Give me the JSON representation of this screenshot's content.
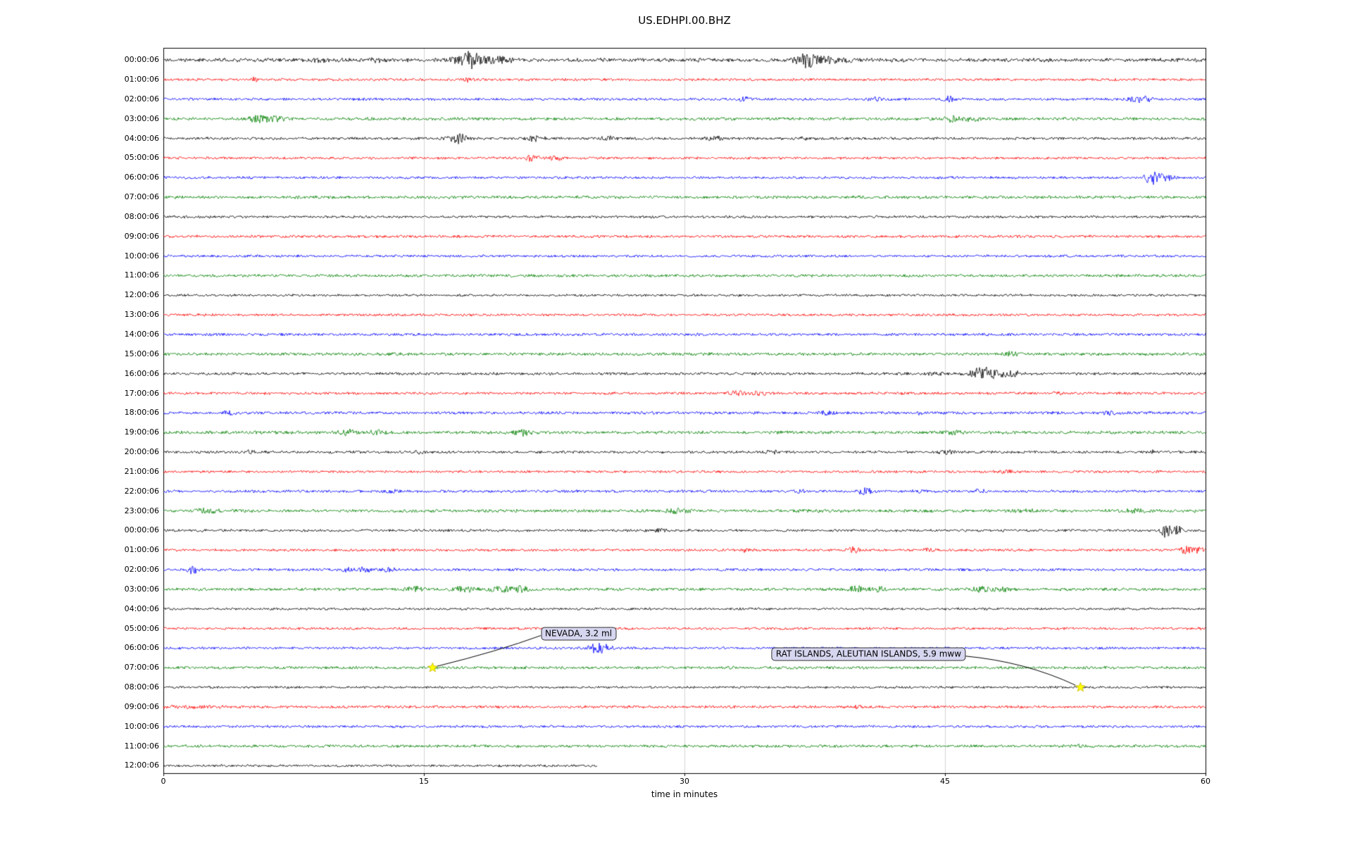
{
  "chart_data": {
    "type": "line",
    "variant": "seismogram-helicorder",
    "title": "US.EDHPI.00.BHZ",
    "xlabel": "time in minutes",
    "xlim": [
      0,
      60
    ],
    "x_ticks": [
      "0",
      "15",
      "30",
      "45",
      "60"
    ],
    "grid": {
      "vertical_lines_minutes": [
        15,
        30,
        45
      ],
      "color": "#c8c8c8"
    },
    "trace_colors_cycle": [
      "#000000",
      "#ff0000",
      "#0000ff",
      "#008000"
    ],
    "marker_color": "#ffff00",
    "rows": [
      {
        "label": "00:00:06",
        "color": "#000000",
        "amp": 2.4
      },
      {
        "label": "01:00:06",
        "color": "#ff0000",
        "amp": 1.6
      },
      {
        "label": "02:00:06",
        "color": "#0000ff",
        "amp": 1.7
      },
      {
        "label": "03:00:06",
        "color": "#008000",
        "amp": 1.9
      },
      {
        "label": "04:00:06",
        "color": "#000000",
        "amp": 1.7
      },
      {
        "label": "05:00:06",
        "color": "#ff0000",
        "amp": 1.6
      },
      {
        "label": "06:00:06",
        "color": "#0000ff",
        "amp": 1.6
      },
      {
        "label": "07:00:06",
        "color": "#008000",
        "amp": 1.9
      },
      {
        "label": "08:00:06",
        "color": "#000000",
        "amp": 1.6
      },
      {
        "label": "09:00:06",
        "color": "#ff0000",
        "amp": 1.7
      },
      {
        "label": "10:00:06",
        "color": "#0000ff",
        "amp": 1.6
      },
      {
        "label": "11:00:06",
        "color": "#008000",
        "amp": 1.8
      },
      {
        "label": "12:00:06",
        "color": "#000000",
        "amp": 1.5
      },
      {
        "label": "13:00:06",
        "color": "#ff0000",
        "amp": 1.6
      },
      {
        "label": "14:00:06",
        "color": "#0000ff",
        "amp": 1.7
      },
      {
        "label": "15:00:06",
        "color": "#008000",
        "amp": 1.9
      },
      {
        "label": "16:00:06",
        "color": "#000000",
        "amp": 1.7
      },
      {
        "label": "17:00:06",
        "color": "#ff0000",
        "amp": 1.7
      },
      {
        "label": "18:00:06",
        "color": "#0000ff",
        "amp": 1.8
      },
      {
        "label": "19:00:06",
        "color": "#008000",
        "amp": 2.0
      },
      {
        "label": "20:00:06",
        "color": "#000000",
        "amp": 1.7
      },
      {
        "label": "21:00:06",
        "color": "#ff0000",
        "amp": 1.6
      },
      {
        "label": "22:00:06",
        "color": "#0000ff",
        "amp": 1.7
      },
      {
        "label": "23:00:06",
        "color": "#008000",
        "amp": 2.0
      },
      {
        "label": "00:00:06",
        "color": "#000000",
        "amp": 1.6
      },
      {
        "label": "01:00:06",
        "color": "#ff0000",
        "amp": 1.6
      },
      {
        "label": "02:00:06",
        "color": "#0000ff",
        "amp": 1.7
      },
      {
        "label": "03:00:06",
        "color": "#008000",
        "amp": 1.9
      },
      {
        "label": "04:00:06",
        "color": "#000000",
        "amp": 1.5
      },
      {
        "label": "05:00:06",
        "color": "#ff0000",
        "amp": 1.6
      },
      {
        "label": "06:00:06",
        "color": "#0000ff",
        "amp": 1.6
      },
      {
        "label": "07:00:06",
        "color": "#008000",
        "amp": 1.8
      },
      {
        "label": "08:00:06",
        "color": "#000000",
        "amp": 1.5
      },
      {
        "label": "09:00:06",
        "color": "#ff0000",
        "amp": 1.7
      },
      {
        "label": "10:00:06",
        "color": "#0000ff",
        "amp": 1.6
      },
      {
        "label": "11:00:06",
        "color": "#008000",
        "amp": 1.8
      },
      {
        "label": "12:00:06",
        "color": "#000000",
        "amp": 1.5,
        "end_minute": 25
      }
    ],
    "bursts": [
      [
        0,
        17.5,
        0.5,
        9
      ],
      [
        0,
        18.7,
        1.0,
        4
      ],
      [
        0,
        9.0,
        0.3,
        2.5
      ],
      [
        0,
        12.2,
        0.3,
        2
      ],
      [
        0,
        37.0,
        0.45,
        8
      ],
      [
        0,
        38.2,
        0.9,
        3.5
      ],
      [
        1,
        5.2,
        0.15,
        3
      ],
      [
        1,
        17.5,
        0.2,
        3
      ],
      [
        2,
        33.5,
        0.3,
        2.5
      ],
      [
        2,
        41.0,
        0.3,
        2.5
      ],
      [
        2,
        45.2,
        0.25,
        4
      ],
      [
        2,
        56.3,
        0.4,
        5
      ],
      [
        3,
        5.3,
        0.3,
        4
      ],
      [
        3,
        6.3,
        0.5,
        3.5
      ],
      [
        3,
        45.4,
        0.3,
        4
      ],
      [
        3,
        46.5,
        0.4,
        2.5
      ],
      [
        4,
        17.0,
        0.4,
        6
      ],
      [
        4,
        21.4,
        0.3,
        4
      ],
      [
        4,
        25.6,
        0.3,
        2
      ],
      [
        4,
        31.8,
        0.3,
        3.5
      ],
      [
        4,
        36.8,
        0.2,
        2
      ],
      [
        5,
        21.2,
        0.3,
        3.5
      ],
      [
        5,
        22.6,
        0.3,
        2.5
      ],
      [
        6,
        56.9,
        0.25,
        9
      ],
      [
        6,
        57.6,
        0.4,
        4
      ],
      [
        15,
        48.8,
        0.3,
        4
      ],
      [
        16,
        47.2,
        0.5,
        8
      ],
      [
        16,
        48.5,
        0.6,
        4
      ],
      [
        16,
        44.5,
        0.3,
        2
      ],
      [
        17,
        33.0,
        0.3,
        3.5
      ],
      [
        17,
        34.3,
        0.3,
        2.5
      ],
      [
        17,
        51.5,
        0.2,
        2
      ],
      [
        18,
        3.8,
        0.25,
        2.5
      ],
      [
        18,
        38.2,
        0.3,
        2.5
      ],
      [
        18,
        43.6,
        0.25,
        2
      ],
      [
        18,
        54.5,
        0.3,
        2
      ],
      [
        19,
        10.6,
        0.35,
        4
      ],
      [
        19,
        12.3,
        0.3,
        2.5
      ],
      [
        19,
        20.7,
        0.35,
        4
      ],
      [
        19,
        45.5,
        0.4,
        2.5
      ],
      [
        20,
        5.0,
        0.2,
        2
      ],
      [
        20,
        14.8,
        0.2,
        2
      ],
      [
        20,
        35.0,
        0.25,
        2
      ],
      [
        20,
        45.0,
        0.3,
        2.5
      ],
      [
        20,
        56.9,
        0.2,
        2
      ],
      [
        21,
        48.5,
        0.3,
        2
      ],
      [
        22,
        40.3,
        0.3,
        5
      ],
      [
        22,
        13.2,
        0.2,
        2
      ],
      [
        22,
        36.5,
        0.25,
        2
      ],
      [
        22,
        43.5,
        0.25,
        2
      ],
      [
        22,
        47.0,
        0.25,
        2
      ],
      [
        23,
        2.5,
        0.5,
        2.5
      ],
      [
        23,
        29.5,
        0.5,
        2.5
      ],
      [
        23,
        49.5,
        0.4,
        2
      ],
      [
        23,
        56.0,
        0.4,
        2
      ],
      [
        24,
        57.7,
        0.2,
        9
      ],
      [
        24,
        58.4,
        0.25,
        6
      ],
      [
        24,
        28.5,
        0.3,
        2
      ],
      [
        25,
        39.7,
        0.25,
        4
      ],
      [
        25,
        33.5,
        0.3,
        2
      ],
      [
        25,
        44.0,
        0.3,
        2
      ],
      [
        25,
        58.8,
        0.3,
        4
      ],
      [
        25,
        59.6,
        0.3,
        3
      ],
      [
        26,
        1.7,
        0.2,
        5
      ],
      [
        26,
        10.6,
        0.3,
        2
      ],
      [
        26,
        11.6,
        0.3,
        3
      ],
      [
        26,
        13.0,
        0.25,
        2
      ],
      [
        27,
        14.5,
        0.4,
        3
      ],
      [
        27,
        17.3,
        0.4,
        4
      ],
      [
        27,
        19.4,
        0.4,
        4
      ],
      [
        27,
        20.6,
        0.35,
        3
      ],
      [
        27,
        40.0,
        0.35,
        4
      ],
      [
        27,
        41.2,
        0.3,
        3
      ],
      [
        27,
        47.0,
        0.35,
        4
      ],
      [
        27,
        48.2,
        0.3,
        3
      ],
      [
        30,
        24.9,
        0.3,
        6
      ],
      [
        30,
        25.5,
        0.3,
        4
      ],
      [
        33,
        1.5,
        1.5,
        1.2
      ],
      [
        33,
        40.0,
        0.3,
        1.5
      ],
      [
        35,
        52.8,
        0.2,
        2
      ]
    ],
    "annotations": [
      {
        "label": "NEVADA, 3.2 ml",
        "row_index": 31,
        "row_label": "07:00:06",
        "x_minutes": 15.5,
        "box": {
          "x_minutes": 23.9,
          "row": 29.25
        },
        "marker": "yellow-star"
      },
      {
        "label": "RAT ISLANDS, ALEUTIAN ISLANDS, 5.9 mww",
        "row_index": 32,
        "row_label": "08:00:06",
        "x_minutes": 52.8,
        "box": {
          "x_minutes": 40.6,
          "row": 30.3
        },
        "marker": "yellow-star"
      }
    ]
  }
}
